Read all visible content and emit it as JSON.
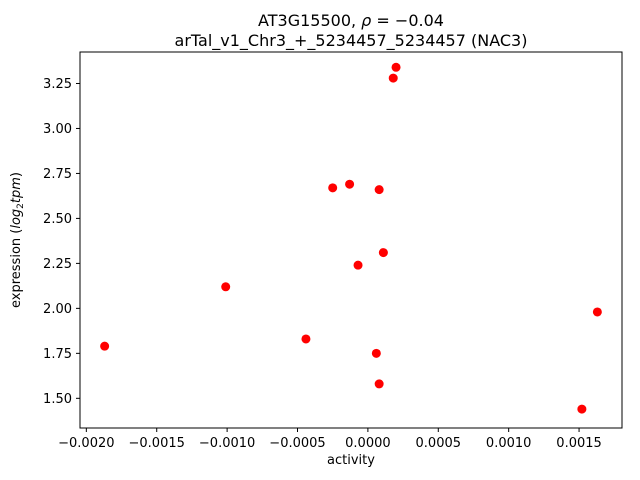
{
  "figure": {
    "title": {
      "part1": "AT3G15500, ",
      "rho": "ρ",
      "part2": " = −0.04",
      "line2": "arTal_v1_Chr3_+_5234457_5234457 (NAC3)"
    },
    "ylabel_parts": {
      "prefix": "expression (",
      "log": "log",
      "sub": "2",
      "tpm": "tpm",
      "suffix": ")"
    }
  },
  "chart_data": {
    "type": "scatter",
    "title": "AT3G15500, ρ = −0.04",
    "subtitle": "arTal_v1_Chr3_+_5234457_5234457 (NAC3)",
    "xlabel": "activity",
    "ylabel": "expression (log2 tpm)",
    "marker_color": "#ff0000",
    "marker_diameter_px": 9,
    "grid": false,
    "legend": "none",
    "xlim": [
      -0.002045,
      0.001805
    ],
    "ylim": [
      1.335,
      3.425
    ],
    "xticks": [
      {
        "value": -0.002,
        "label": "−0.0020"
      },
      {
        "value": -0.0015,
        "label": "−0.0015"
      },
      {
        "value": -0.001,
        "label": "−0.0010"
      },
      {
        "value": -0.0005,
        "label": "−0.0005"
      },
      {
        "value": 0.0,
        "label": "0.0000"
      },
      {
        "value": 0.0005,
        "label": "0.0005"
      },
      {
        "value": 0.001,
        "label": "0.0010"
      },
      {
        "value": 0.0015,
        "label": "0.0015"
      }
    ],
    "yticks": [
      {
        "value": 1.5,
        "label": "1.50"
      },
      {
        "value": 1.75,
        "label": "1.75"
      },
      {
        "value": 2.0,
        "label": "2.00"
      },
      {
        "value": 2.25,
        "label": "2.25"
      },
      {
        "value": 2.5,
        "label": "2.50"
      },
      {
        "value": 2.75,
        "label": "2.75"
      },
      {
        "value": 3.0,
        "label": "3.00"
      },
      {
        "value": 3.25,
        "label": "3.25"
      }
    ],
    "points": [
      {
        "x": 0.0002,
        "y": 3.34
      },
      {
        "x": 0.00018,
        "y": 3.28
      },
      {
        "x": -0.00025,
        "y": 2.67
      },
      {
        "x": -0.00013,
        "y": 2.69
      },
      {
        "x": 8e-05,
        "y": 2.66
      },
      {
        "x": -7e-05,
        "y": 2.24
      },
      {
        "x": 0.00011,
        "y": 2.31
      },
      {
        "x": -0.00101,
        "y": 2.12
      },
      {
        "x": 0.00163,
        "y": 1.98
      },
      {
        "x": -0.00187,
        "y": 1.79
      },
      {
        "x": -0.00044,
        "y": 1.83
      },
      {
        "x": 6e-05,
        "y": 1.75
      },
      {
        "x": 8e-05,
        "y": 1.58
      },
      {
        "x": 0.00152,
        "y": 1.44
      }
    ]
  }
}
